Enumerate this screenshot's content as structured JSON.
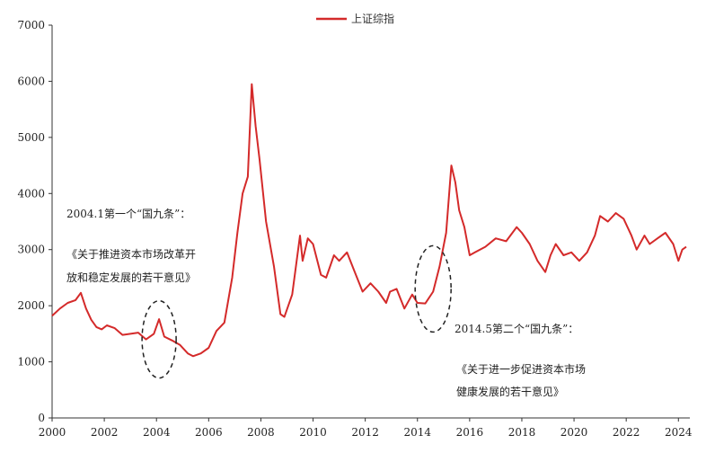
{
  "chart_data": {
    "type": "line",
    "title": "",
    "xlabel": "",
    "ylabel": "",
    "xlim": [
      2000,
      2024.3
    ],
    "ylim": [
      0,
      7000
    ],
    "grid": false,
    "legend": {
      "placement": "top-center",
      "entries": [
        "上证综指"
      ]
    },
    "x_ticks": [
      "2000",
      "2002",
      "2004",
      "2006",
      "2008",
      "2010",
      "2012",
      "2014",
      "2016",
      "2018",
      "2020",
      "2022",
      "2024"
    ],
    "y_ticks": [
      "0",
      "1000",
      "2000",
      "3000",
      "4000",
      "5000",
      "6000",
      "7000"
    ],
    "series": [
      {
        "name": "上证综指",
        "color": "#d42a2a",
        "x": [
          2000.0,
          2000.3,
          2000.6,
          2000.9,
          2001.1,
          2001.3,
          2001.5,
          2001.7,
          2001.9,
          2002.1,
          2002.4,
          2002.7,
          2003.0,
          2003.3,
          2003.6,
          2003.9,
          2004.1,
          2004.3,
          2004.6,
          2004.9,
          2005.2,
          2005.4,
          2005.7,
          2006.0,
          2006.3,
          2006.6,
          2006.9,
          2007.1,
          2007.3,
          2007.5,
          2007.65,
          2007.8,
          2007.95,
          2008.2,
          2008.5,
          2008.75,
          2008.9,
          2009.2,
          2009.5,
          2009.6,
          2009.8,
          2010.0,
          2010.3,
          2010.5,
          2010.8,
          2011.0,
          2011.3,
          2011.6,
          2011.9,
          2012.2,
          2012.5,
          2012.8,
          2012.95,
          2013.2,
          2013.5,
          2013.8,
          2014.0,
          2014.3,
          2014.6,
          2014.85,
          2015.1,
          2015.3,
          2015.45,
          2015.6,
          2015.8,
          2016.0,
          2016.2,
          2016.6,
          2017.0,
          2017.4,
          2017.8,
          2018.0,
          2018.3,
          2018.6,
          2018.9,
          2019.1,
          2019.3,
          2019.6,
          2019.9,
          2020.2,
          2020.5,
          2020.8,
          2021.0,
          2021.3,
          2021.6,
          2021.9,
          2022.2,
          2022.4,
          2022.7,
          2022.9,
          2023.2,
          2023.5,
          2023.8,
          2024.0,
          2024.15,
          2024.3
        ],
        "y": [
          1820,
          1950,
          2050,
          2100,
          2230,
          1950,
          1750,
          1620,
          1580,
          1650,
          1600,
          1480,
          1500,
          1520,
          1400,
          1500,
          1760,
          1450,
          1380,
          1300,
          1150,
          1100,
          1150,
          1250,
          1550,
          1700,
          2500,
          3300,
          4000,
          4300,
          5950,
          5200,
          4600,
          3500,
          2700,
          1850,
          1800,
          2200,
          3250,
          2800,
          3200,
          3100,
          2550,
          2500,
          2900,
          2800,
          2950,
          2600,
          2250,
          2400,
          2250,
          2050,
          2250,
          2300,
          1950,
          2200,
          2050,
          2040,
          2250,
          2700,
          3300,
          4500,
          4200,
          3700,
          3400,
          2900,
          2950,
          3050,
          3200,
          3150,
          3400,
          3300,
          3100,
          2800,
          2600,
          2900,
          3100,
          2900,
          2950,
          2800,
          2950,
          3250,
          3600,
          3500,
          3650,
          3550,
          3250,
          3000,
          3250,
          3100,
          3200,
          3300,
          3100,
          2800,
          3000,
          3050
        ]
      }
    ],
    "annotations": [
      {
        "lines": [
          "2004.1第一个“国九条”：",
          "《关于推进资本市场改革开",
          "放和稳定发展的若干意见》"
        ],
        "x": 2004.1,
        "y": 1400
      },
      {
        "lines": [
          "2014.5第二个“国九条”：",
          "《关于进一步促进资本市场",
          "健康发展的若干意见》"
        ],
        "x": 2014.6,
        "y": 2300
      }
    ]
  }
}
